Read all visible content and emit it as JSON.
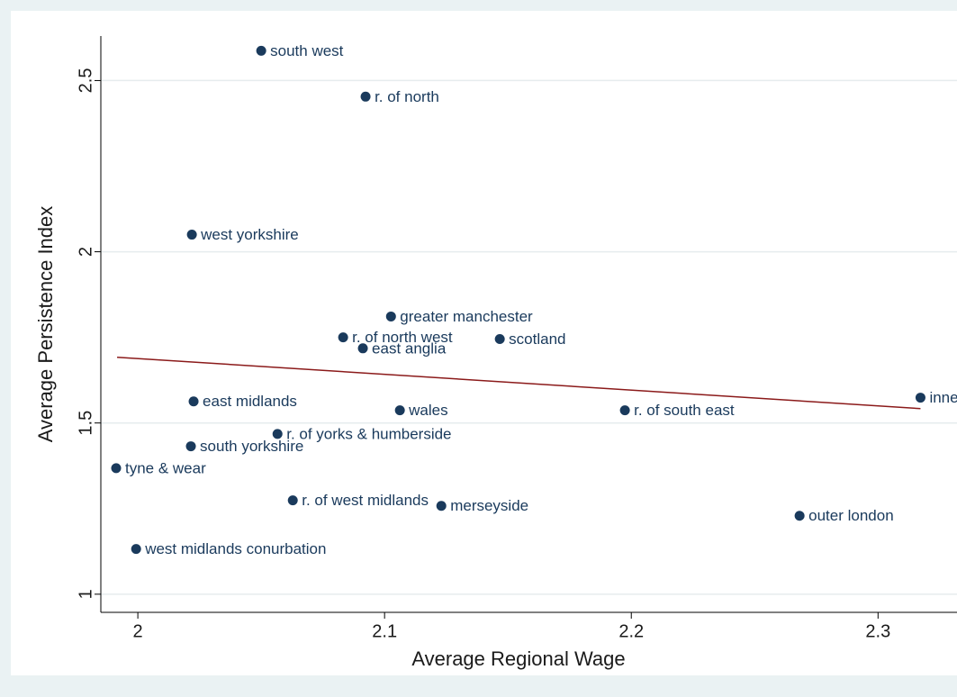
{
  "chart_data": {
    "type": "scatter",
    "x_label": "Average Regional Wage",
    "y_label": "Average Persistence Index",
    "xlim": [
      1.985,
      2.332
    ],
    "ylim": [
      0.947,
      2.63
    ],
    "xticks": [
      2,
      2.1,
      2.2,
      2.3
    ],
    "yticks": [
      1,
      1.5,
      2,
      2.5
    ],
    "grid": true,
    "color": "#1a3a5c",
    "points": [
      {
        "label": "south west",
        "x": 2.05,
        "y": 2.587
      },
      {
        "label": "r. of north",
        "x": 2.0923,
        "y": 2.453
      },
      {
        "label": "west yorkshire",
        "x": 2.0219,
        "y": 2.05
      },
      {
        "label": "greater manchester",
        "x": 2.1026,
        "y": 1.811
      },
      {
        "label": "r. of north west",
        "x": 2.0832,
        "y": 1.75
      },
      {
        "label": "east anglia",
        "x": 2.0912,
        "y": 1.718
      },
      {
        "label": "scotland",
        "x": 2.1467,
        "y": 1.745
      },
      {
        "label": "inner london",
        "x": 2.3172,
        "y": 1.574
      },
      {
        "label": "east midlands",
        "x": 2.0226,
        "y": 1.563
      },
      {
        "label": "wales",
        "x": 2.1062,
        "y": 1.537
      },
      {
        "label": "r. of south east",
        "x": 2.1974,
        "y": 1.537
      },
      {
        "label": "r. of yorks & humberside",
        "x": 2.0566,
        "y": 1.468
      },
      {
        "label": "south yorkshire",
        "x": 2.0215,
        "y": 1.432
      },
      {
        "label": "tyne & wear",
        "x": 1.9912,
        "y": 1.368
      },
      {
        "label": "r. of west midlands",
        "x": 2.0628,
        "y": 1.274
      },
      {
        "label": "merseyside",
        "x": 2.123,
        "y": 1.258
      },
      {
        "label": "outer london",
        "x": 2.2682,
        "y": 1.229
      },
      {
        "label": "west midlands conurbation",
        "x": 1.9993,
        "y": 1.132
      }
    ],
    "fit": {
      "x": [
        1.9916,
        2.3172
      ],
      "values": [
        1.692,
        1.542
      ],
      "color": "#8b1a1a"
    }
  }
}
